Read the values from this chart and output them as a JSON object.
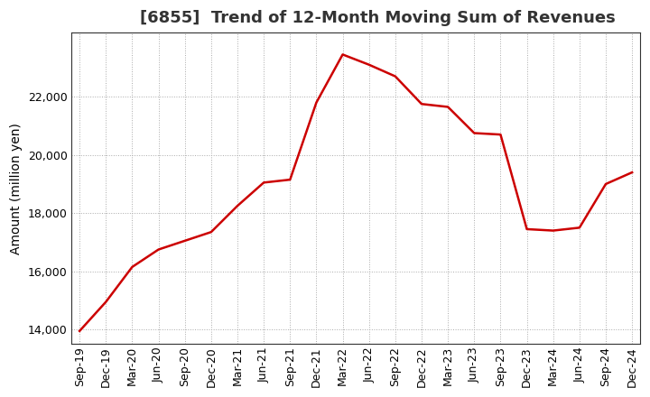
{
  "title": "[6855]  Trend of 12-Month Moving Sum of Revenues",
  "ylabel": "Amount (million yen)",
  "line_color": "#cc0000",
  "background_color": "#ffffff",
  "plot_bg_color": "#ffffff",
  "grid_color": "#aaaaaa",
  "x_labels": [
    "Sep-19",
    "Dec-19",
    "Mar-20",
    "Jun-20",
    "Sep-20",
    "Dec-20",
    "Mar-21",
    "Jun-21",
    "Sep-21",
    "Dec-21",
    "Mar-22",
    "Jun-22",
    "Sep-22",
    "Dec-22",
    "Mar-23",
    "Jun-23",
    "Sep-23",
    "Dec-23",
    "Mar-24",
    "Jun-24",
    "Sep-24",
    "Dec-24"
  ],
  "y_values": [
    13950,
    14950,
    16150,
    16750,
    17050,
    17350,
    18250,
    19050,
    19150,
    21800,
    23450,
    23100,
    22700,
    21750,
    21650,
    20750,
    20700,
    17450,
    17400,
    17500,
    19000,
    19400
  ],
  "ylim": [
    13500,
    24200
  ],
  "yticks": [
    14000,
    16000,
    18000,
    20000,
    22000
  ],
  "title_fontsize": 13,
  "label_fontsize": 10,
  "tick_fontsize": 9,
  "title_color": "#333333"
}
